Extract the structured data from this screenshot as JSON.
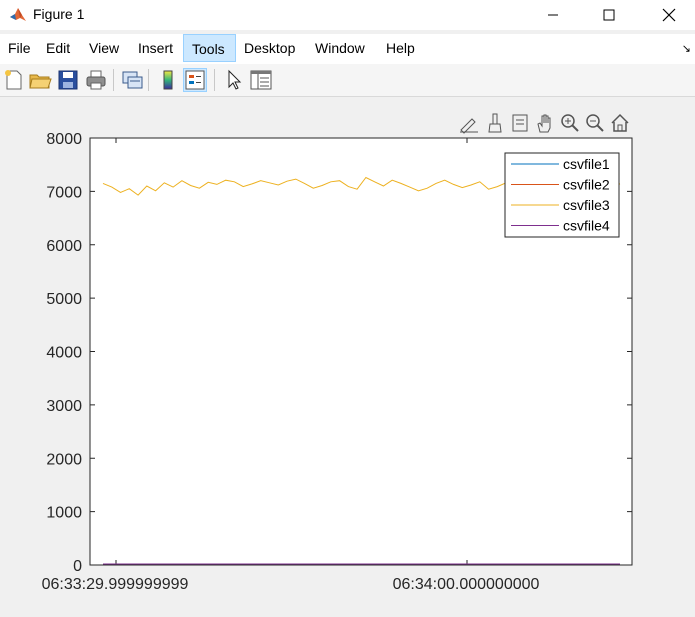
{
  "window": {
    "title": "Figure 1"
  },
  "menu": {
    "items": [
      "File",
      "Edit",
      "View",
      "Insert",
      "Tools",
      "Desktop",
      "Window",
      "Help"
    ],
    "active": "Tools"
  },
  "chart_data": {
    "type": "line",
    "ylim": [
      0,
      8000
    ],
    "yticks": [
      0,
      1000,
      2000,
      3000,
      4000,
      5000,
      6000,
      7000,
      8000
    ],
    "xtick_labels": [
      "06:33:29.999999999",
      "06:34:00.000000000"
    ],
    "legend": {
      "location": "top-right",
      "entries": [
        "csvfile1",
        "csvfile2",
        "csvfile3",
        "csvfile4"
      ]
    },
    "series": [
      {
        "name": "csvfile1",
        "color": "#0072bd",
        "level": 0
      },
      {
        "name": "csvfile2",
        "color": "#d95319",
        "level": 0
      },
      {
        "name": "csvfile3",
        "color": "#edb120",
        "values": [
          7150,
          7080,
          6980,
          7050,
          6930,
          7100,
          7010,
          7160,
          7080,
          7200,
          7110,
          7060,
          7170,
          7130,
          7210,
          7180,
          7090,
          7140,
          7200,
          7160,
          7120,
          7190,
          7230,
          7150,
          7060,
          7110,
          7180,
          7200,
          7090,
          7040,
          7260,
          7180,
          7100,
          7210,
          7150,
          7080,
          7010,
          7060,
          7150,
          7210,
          7130,
          7070,
          7120,
          7180,
          7040,
          7090,
          7160,
          7110,
          7030,
          7140,
          7230,
          7170,
          7080,
          7110,
          7050,
          7020,
          7160,
          7060,
          7100,
          7140
        ]
      },
      {
        "name": "csvfile4",
        "color": "#7e2f8e",
        "level": 0
      }
    ]
  }
}
